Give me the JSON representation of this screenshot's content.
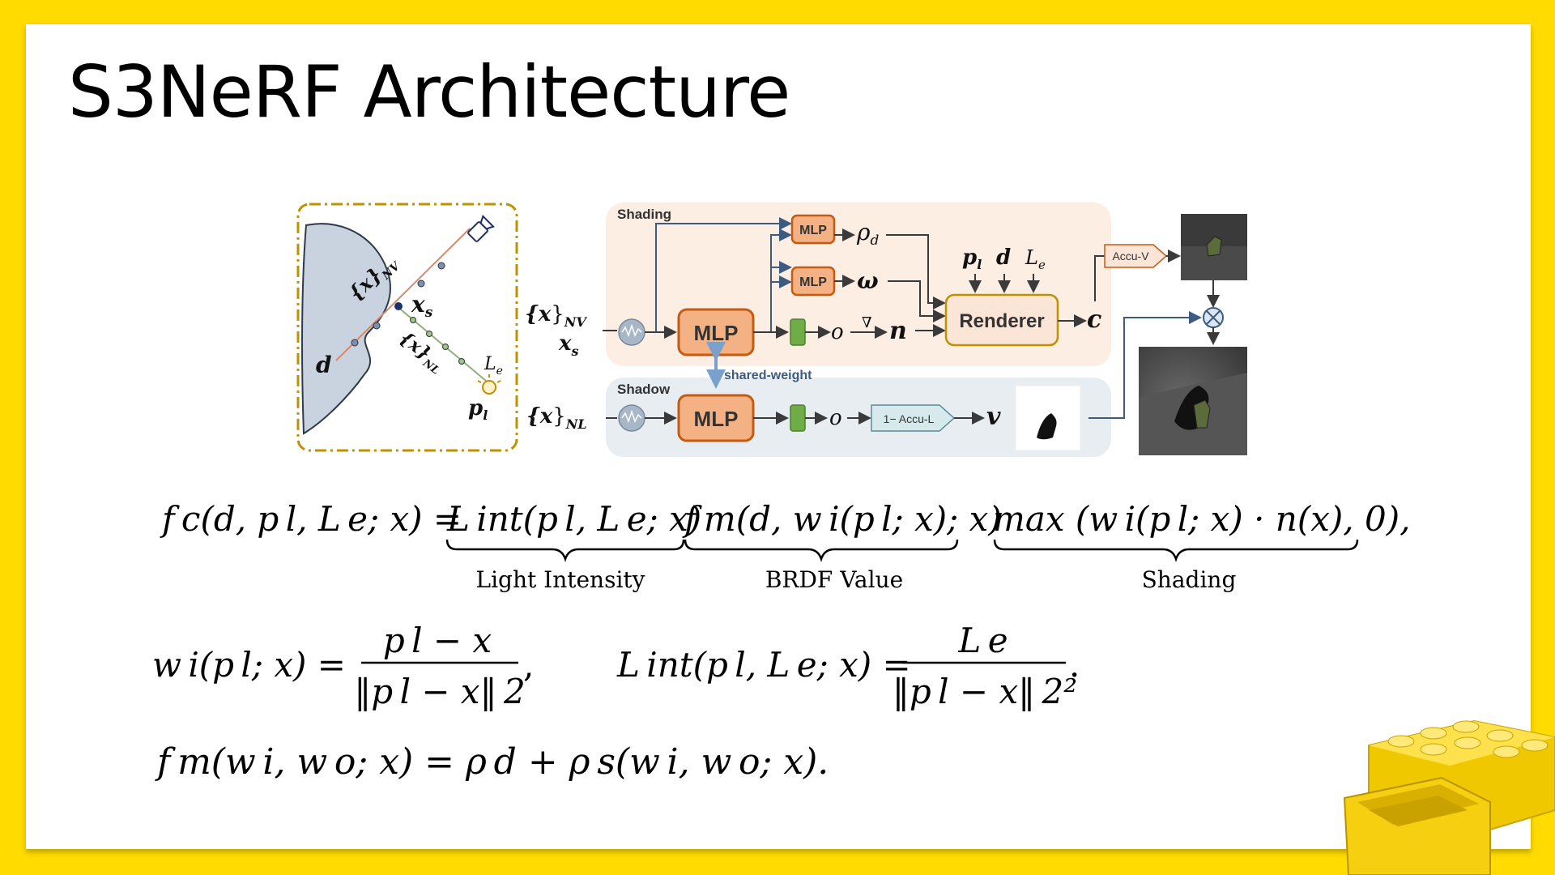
{
  "slide": {
    "title": "S3NeRF Architecture"
  },
  "diagram": {
    "shading_label": "Shading",
    "shadow_label": "Shadow",
    "mlp_label": "MLP",
    "renderer_label": "Renderer",
    "shared_weight_label": "shared-weight",
    "accu_v_label": "Accu-V",
    "accu_l_label": "1− Accu-L",
    "out_rho": "ρ",
    "out_rho_sub": "d",
    "out_omega": "ω",
    "out_o": "o",
    "out_nabla": "∇",
    "out_n": "n",
    "out_c": "c",
    "out_v": "v",
    "in_xi": "{x",
    "in_xi_close": "}",
    "in_sub_NV": "NV",
    "in_sub_NL": "NL",
    "in_xs": "x",
    "in_xs_sub": "s",
    "ren_p": "p",
    "ren_p_sub": "l",
    "ren_d": "d",
    "ren_L": "L",
    "ren_L_sub": "e",
    "left_d": "d",
    "left_xs": "x",
    "left_pl": "p",
    "left_Le": "L"
  },
  "equations": {
    "eq1_lhs": "f c(d, p l, L e; x) =",
    "eq1_term1": "L int(p l, L e; x)",
    "eq1_term2": "f m(d, w i(p l; x); x)",
    "eq1_term3": "max (w i(p l; x) · n(x), 0),",
    "brace_label_1": "Light Intensity",
    "brace_label_2": "BRDF Value",
    "brace_label_3": "Shading",
    "eq2_lhs": "w i(p l; x) =",
    "eq2_num": "p l − x",
    "eq2_den": "‖p l − x‖ 2",
    "eq2_comma": ",",
    "eq3_lhs": "L int(p l, L e; x) =",
    "eq3_num": "L e",
    "eq3_den": "‖p l − x‖ 2²",
    "eq3_period": ".",
    "eq4": "f m(w i, w o; x) = ρ d + ρ s(w i, w o; x)."
  },
  "colors": {
    "page_bg": "#FFDB00",
    "shading_bg": "#FDEEE4",
    "shadow_bg": "#E8EDF2",
    "mlp_fill": "#F4B183",
    "mlp_stroke": "#C55A11",
    "renderer_fill": "#FBE5D6",
    "renderer_stroke": "#BF9000",
    "green_block": "#70AD47",
    "frame_dash": "#BF9000"
  }
}
